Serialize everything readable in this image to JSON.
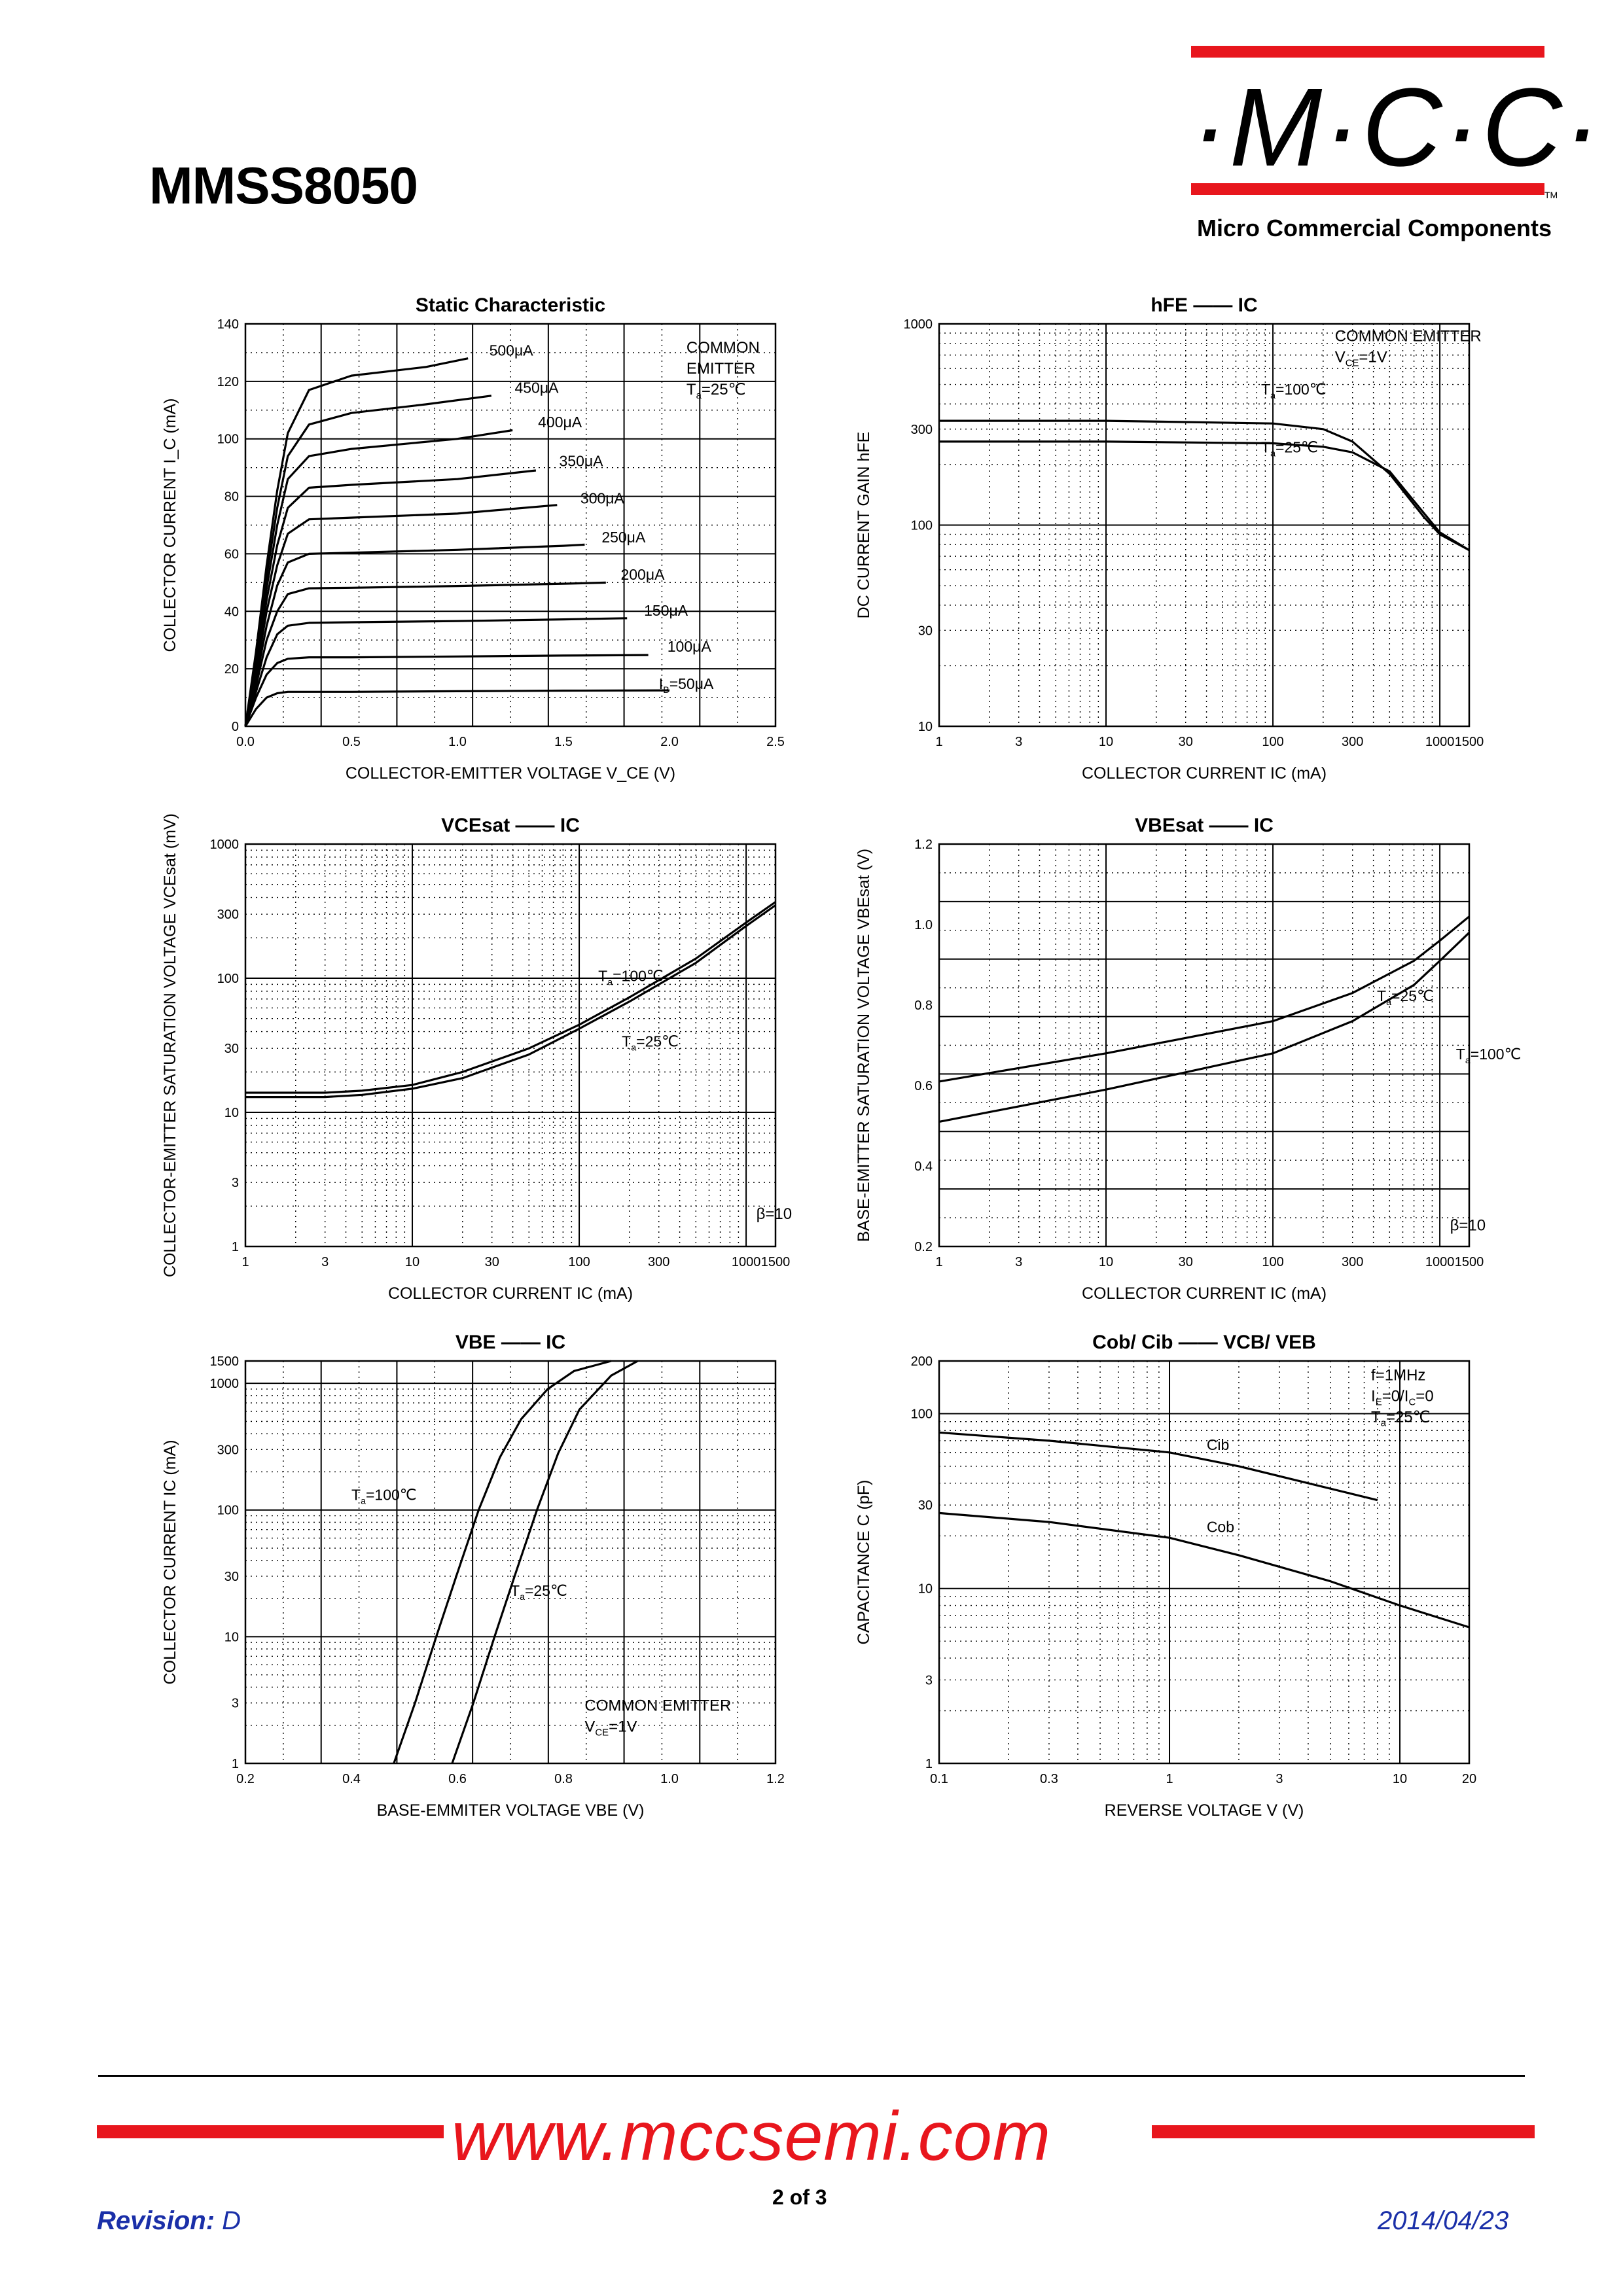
{
  "header": {
    "part_number": "MMSS8050"
  },
  "logo": {
    "text": "·M·C·C·",
    "tm": "TM",
    "company": "Micro Commercial Components",
    "brand_color": "#e8161d"
  },
  "footer": {
    "website": "www.mccsemi.com",
    "page": "2 of 3",
    "revision_label": "Revision:",
    "revision_value": "D",
    "date": "2014/04/23",
    "link_color": "#1a2fa8"
  },
  "chart_data": [
    {
      "id": "static",
      "type": "line",
      "title": "Static Characteristic",
      "xlabel": "COLLECTOR-EMITTER VOLTAGE V_CE (V)",
      "ylabel": "COLLECTOR CURRENT I_C (mA)",
      "x_scale": "linear",
      "y_scale": "linear",
      "xlim": [
        0,
        2.5
      ],
      "ylim": [
        0,
        140
      ],
      "x_ticks": [
        "0.0",
        "0.5",
        "1.0",
        "1.5",
        "2.0",
        "2.5"
      ],
      "y_ticks": [
        "0",
        "20",
        "40",
        "60",
        "80",
        "100",
        "120",
        "140"
      ],
      "annotation": [
        "COMMON",
        "EMITTER",
        "Ta=25℃"
      ],
      "series": [
        {
          "name": "IB=50μA",
          "x": [
            0,
            0.05,
            0.1,
            0.15,
            0.2,
            0.3,
            0.5,
            1.0,
            1.5,
            2.0
          ],
          "y": [
            0,
            6,
            10,
            11.5,
            12,
            12,
            12,
            12.2,
            12.4,
            12.5
          ]
        },
        {
          "name": "100μA",
          "x": [
            0,
            0.05,
            0.1,
            0.15,
            0.2,
            0.3,
            0.5,
            1.0,
            1.5,
            1.9
          ],
          "y": [
            0,
            10,
            18,
            22,
            23.5,
            24,
            24,
            24.3,
            24.6,
            24.8
          ]
        },
        {
          "name": "150μA",
          "x": [
            0,
            0.05,
            0.1,
            0.15,
            0.2,
            0.3,
            0.5,
            1.0,
            1.5,
            1.8
          ],
          "y": [
            0,
            12,
            24,
            32,
            35,
            36,
            36.2,
            36.6,
            37.2,
            37.6
          ]
        },
        {
          "name": "200μA",
          "x": [
            0,
            0.05,
            0.1,
            0.15,
            0.2,
            0.3,
            0.5,
            1.0,
            1.5,
            1.7
          ],
          "y": [
            0,
            14,
            30,
            40,
            46,
            48,
            48.2,
            48.8,
            49.6,
            50
          ]
        },
        {
          "name": "250μA",
          "x": [
            0,
            0.05,
            0.1,
            0.15,
            0.2,
            0.3,
            0.5,
            1.0,
            1.5,
            1.6
          ],
          "y": [
            0,
            16,
            35,
            49,
            57,
            60,
            60.4,
            61.4,
            62.8,
            63.2
          ]
        },
        {
          "name": "300μA",
          "x": [
            0,
            0.05,
            0.1,
            0.15,
            0.2,
            0.3,
            0.5,
            1.0,
            1.47
          ],
          "y": [
            0,
            18,
            40,
            56,
            67,
            72,
            72.6,
            74,
            77
          ]
        },
        {
          "name": "350μA",
          "x": [
            0,
            0.05,
            0.1,
            0.15,
            0.2,
            0.3,
            0.5,
            1.0,
            1.37
          ],
          "y": [
            0,
            20,
            44,
            63,
            76,
            83,
            84,
            86,
            89
          ]
        },
        {
          "name": "400μA",
          "x": [
            0,
            0.05,
            0.1,
            0.15,
            0.2,
            0.3,
            0.5,
            1.0,
            1.26
          ],
          "y": [
            0,
            22,
            48,
            70,
            86,
            94,
            96.5,
            100,
            103
          ]
        },
        {
          "name": "450μA",
          "x": [
            0,
            0.05,
            0.1,
            0.15,
            0.2,
            0.3,
            0.5,
            0.85,
            1.16
          ],
          "y": [
            0,
            24,
            52,
            76,
            94,
            105,
            109,
            112,
            115
          ]
        },
        {
          "name": "500μA",
          "x": [
            0,
            0.05,
            0.1,
            0.15,
            0.2,
            0.3,
            0.5,
            0.85,
            1.05
          ],
          "y": [
            0,
            26,
            56,
            82,
            102,
            117,
            122,
            125,
            128
          ]
        }
      ]
    },
    {
      "id": "hfe",
      "type": "line",
      "title": "hFE —— IC",
      "xlabel": "COLLECTOR CURRENT IC (mA)",
      "ylabel": "DC CURRENT GAIN hFE",
      "x_scale": "log",
      "y_scale": "log",
      "xlim": [
        1,
        1500
      ],
      "ylim": [
        10,
        1000
      ],
      "x_ticks": [
        "1",
        "3",
        "10",
        "30",
        "100",
        "300",
        "1000",
        "1500"
      ],
      "y_ticks": [
        "10",
        "30",
        "100",
        "300",
        "1000"
      ],
      "annotation": [
        "COMMON EMITTER",
        "VCE=1V"
      ],
      "series": [
        {
          "name": "Ta=100℃",
          "x": [
            1,
            10,
            100,
            200,
            300,
            500,
            800,
            1000,
            1500
          ],
          "y": [
            330,
            330,
            320,
            300,
            260,
            180,
            110,
            90,
            75
          ]
        },
        {
          "name": "Ta=25℃",
          "x": [
            1,
            10,
            100,
            200,
            300,
            500,
            800,
            1000,
            1500
          ],
          "y": [
            260,
            260,
            255,
            245,
            230,
            185,
            115,
            92,
            75
          ]
        }
      ]
    },
    {
      "id": "vcesat",
      "type": "line",
      "title": "VCEsat —— IC",
      "xlabel": "COLLECTOR CURRENT IC (mA)",
      "ylabel": "COLLECTOR-EMITTER SATURATION VOLTAGE VCEsat (mV)",
      "x_scale": "log",
      "y_scale": "log",
      "xlim": [
        1,
        1500
      ],
      "ylim": [
        1,
        1000
      ],
      "x_ticks": [
        "1",
        "3",
        "10",
        "30",
        "100",
        "300",
        "1000",
        "1500"
      ],
      "y_ticks": [
        "1",
        "3",
        "10",
        "30",
        "100",
        "300",
        "1000"
      ],
      "annotation": [
        "β=10"
      ],
      "series": [
        {
          "name": "Ta=100℃",
          "x": [
            1,
            3,
            5,
            10,
            20,
            50,
            100,
            200,
            500,
            1000,
            1500
          ],
          "y": [
            14,
            14,
            14.5,
            16,
            20,
            30,
            45,
            72,
            140,
            260,
            370
          ]
        },
        {
          "name": "Ta=25℃",
          "x": [
            1,
            3,
            5,
            10,
            20,
            50,
            100,
            200,
            500,
            1000,
            1500
          ],
          "y": [
            13,
            13,
            13.5,
            15,
            18,
            27,
            42,
            67,
            130,
            245,
            350
          ]
        }
      ]
    },
    {
      "id": "vbesat",
      "type": "line",
      "title": "VBEsat —— IC",
      "xlabel": "COLLECTOR CURRENT IC (mA)",
      "ylabel": "BASE-EMITTER SATURATION VOLTAGE VBEsat (V)",
      "x_scale": "log",
      "y_scale": "linear",
      "xlim": [
        1,
        1500
      ],
      "ylim": [
        0.2,
        1.2
      ],
      "x_ticks": [
        "1",
        "3",
        "10",
        "30",
        "100",
        "300",
        "1000",
        "1500"
      ],
      "y_ticks": [
        "0.2",
        "0.4",
        "0.6",
        "0.8",
        "1.0",
        "1.2"
      ],
      "annotation": [
        "β=10"
      ],
      "series": [
        {
          "name": "Ta=25℃",
          "x": [
            1,
            10,
            100,
            300,
            700,
            1000,
            1500
          ],
          "y": [
            0.61,
            0.68,
            0.76,
            0.83,
            0.91,
            0.96,
            1.02
          ]
        },
        {
          "name": "Ta=100℃",
          "x": [
            1,
            10,
            100,
            300,
            700,
            1000,
            1500
          ],
          "y": [
            0.51,
            0.59,
            0.68,
            0.76,
            0.85,
            0.91,
            0.98
          ]
        }
      ]
    },
    {
      "id": "vbe",
      "type": "line",
      "title": "VBE —— IC",
      "xlabel": "BASE-EMMITER VOLTAGE VBE (V)",
      "ylabel": "COLLECTOR CURRENT IC (mA)",
      "x_scale": "linear",
      "y_scale": "log",
      "xlim": [
        0.2,
        1.2
      ],
      "ylim": [
        1,
        1500
      ],
      "x_ticks": [
        "0.2",
        "0.4",
        "0.6",
        "0.8",
        "1.0",
        "1.2"
      ],
      "y_ticks": [
        "1",
        "3",
        "10",
        "30",
        "100",
        "300",
        "1000",
        "1500"
      ],
      "annotation": [
        "COMMON EMITTER",
        "VCE=1V"
      ],
      "series": [
        {
          "name": "Ta=100℃",
          "x": [
            0.48,
            0.52,
            0.56,
            0.6,
            0.64,
            0.68,
            0.72,
            0.77,
            0.82,
            0.89
          ],
          "y": [
            1,
            3,
            10,
            32,
            100,
            260,
            520,
            900,
            1250,
            1500
          ]
        },
        {
          "name": "Ta=25℃",
          "x": [
            0.59,
            0.63,
            0.67,
            0.71,
            0.75,
            0.79,
            0.83,
            0.89,
            0.94
          ],
          "y": [
            1,
            3,
            10,
            32,
            100,
            280,
            620,
            1150,
            1500
          ]
        }
      ]
    },
    {
      "id": "cap",
      "type": "line",
      "title": "Cob/ Cib —— VCB/ VEB",
      "xlabel": "REVERSE VOLTAGE V (V)",
      "ylabel": "CAPACITANCE C (pF)",
      "x_scale": "log",
      "y_scale": "log",
      "xlim": [
        0.1,
        20
      ],
      "ylim": [
        1,
        200
      ],
      "x_ticks": [
        "0.1",
        "0.3",
        "1",
        "3",
        "10",
        "20"
      ],
      "y_ticks": [
        "1",
        "3",
        "10",
        "30",
        "100",
        "200"
      ],
      "annotation": [
        "f=1MHz",
        "IE=0/IC=0",
        "Ta=25℃"
      ],
      "series": [
        {
          "name": "Cib",
          "x": [
            0.1,
            0.3,
            1,
            2,
            4,
            8
          ],
          "y": [
            78,
            70,
            60,
            50,
            40,
            32
          ]
        },
        {
          "name": "Cob",
          "x": [
            0.1,
            0.3,
            1,
            2,
            5,
            10,
            20
          ],
          "y": [
            27,
            24,
            19.5,
            15.5,
            11,
            8,
            6
          ]
        }
      ]
    }
  ]
}
